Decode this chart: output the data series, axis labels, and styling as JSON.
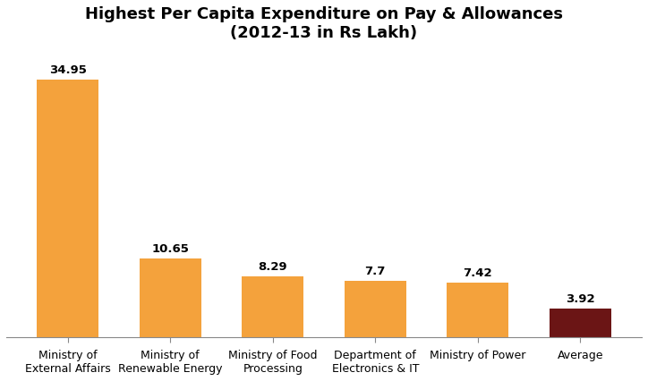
{
  "title": "Highest Per Capita Expenditure on Pay & Allowances\n(2012-13 in Rs Lakh)",
  "categories": [
    "Ministry of\nExternal Affairs",
    "Ministry of\nRenewable Energy",
    "Ministry of Food\nProcessing",
    "Department of\nElectronics & IT",
    "Ministry of Power",
    "Average"
  ],
  "values": [
    34.95,
    10.65,
    8.29,
    7.7,
    7.42,
    3.92
  ],
  "bar_colors": [
    "#F4A23C",
    "#F4A23C",
    "#F4A23C",
    "#F4A23C",
    "#F4A23C",
    "#6B1515"
  ],
  "title_fontsize": 13,
  "label_fontsize": 9,
  "value_fontsize": 9.5,
  "ylim": [
    0,
    39
  ],
  "background_color": "#FFFFFF",
  "bar_width": 0.6,
  "figsize": [
    7.24,
    4.26
  ],
  "dpi": 100
}
